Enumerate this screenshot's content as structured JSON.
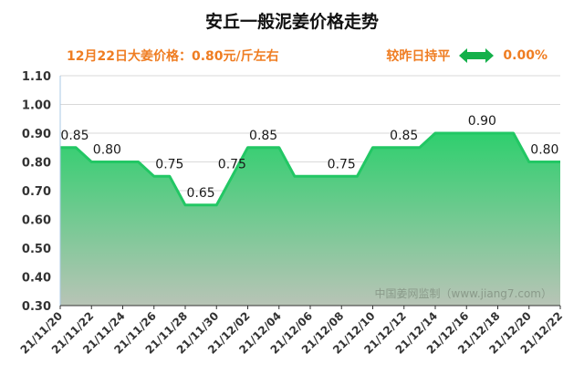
{
  "title": "安丘一般泥姜价格走势",
  "subtitle": {
    "price_text": "12月22日大姜价格：0.80元/斤左右",
    "change_label": "较昨日持平",
    "change_value": "0.00%"
  },
  "watermark": "中国姜网监制（www.jiang7.com）",
  "colors": {
    "title": "#111111",
    "subtitle": "#ef7d22",
    "line": "#22c764",
    "fill_top": "#2fcf6e",
    "fill_bottom": "#b8c4b6",
    "arrow": "#14b04a",
    "axis": "#555555"
  },
  "icons": {
    "change_indicator": "double-arrow-icon"
  },
  "chart_data": {
    "type": "area",
    "x": [
      "21/11/20",
      "21/11/21",
      "21/11/22",
      "21/11/23",
      "21/11/24",
      "21/11/25",
      "21/11/26",
      "21/11/27",
      "21/11/28",
      "21/11/29",
      "21/11/30",
      "21/12/01",
      "21/12/02",
      "21/12/03",
      "21/12/04",
      "21/12/05",
      "21/12/06",
      "21/12/07",
      "21/12/08",
      "21/12/09",
      "21/12/10",
      "21/12/11",
      "21/12/12",
      "21/12/13",
      "21/12/14",
      "21/12/15",
      "21/12/16",
      "21/12/17",
      "21/12/18",
      "21/12/19",
      "21/12/20",
      "21/12/21",
      "21/12/22"
    ],
    "values": [
      0.85,
      0.85,
      0.8,
      0.8,
      0.8,
      0.8,
      0.75,
      0.75,
      0.65,
      0.65,
      0.65,
      0.75,
      0.85,
      0.85,
      0.85,
      0.75,
      0.75,
      0.75,
      0.75,
      0.75,
      0.85,
      0.85,
      0.85,
      0.85,
      0.9,
      0.9,
      0.9,
      0.9,
      0.9,
      0.9,
      0.8,
      0.8,
      0.8
    ],
    "x_tick_labels": [
      "21/11/20",
      "21/11/22",
      "21/11/24",
      "21/11/26",
      "21/11/28",
      "21/11/30",
      "21/12/02",
      "21/12/04",
      "21/12/06",
      "21/12/08",
      "21/12/10",
      "21/12/12",
      "21/12/14",
      "21/12/16",
      "21/12/18",
      "21/12/20",
      "21/12/22"
    ],
    "y_tick_labels": [
      "1.10",
      "1.00",
      "0.90",
      "0.80",
      "0.70",
      "0.60",
      "0.50",
      "0.40",
      "0.30"
    ],
    "ylim": [
      0.3,
      1.1
    ],
    "grid": true,
    "data_labels": [
      {
        "index": 0,
        "text": "0.85"
      },
      {
        "index": 3,
        "text": "0.80"
      },
      {
        "index": 7,
        "text": "0.75"
      },
      {
        "index": 9,
        "text": "0.65"
      },
      {
        "index": 11,
        "text": "0.75"
      },
      {
        "index": 13,
        "text": "0.85"
      },
      {
        "index": 18,
        "text": "0.75"
      },
      {
        "index": 22,
        "text": "0.85"
      },
      {
        "index": 27,
        "text": "0.90"
      },
      {
        "index": 31,
        "text": "0.80"
      }
    ]
  }
}
